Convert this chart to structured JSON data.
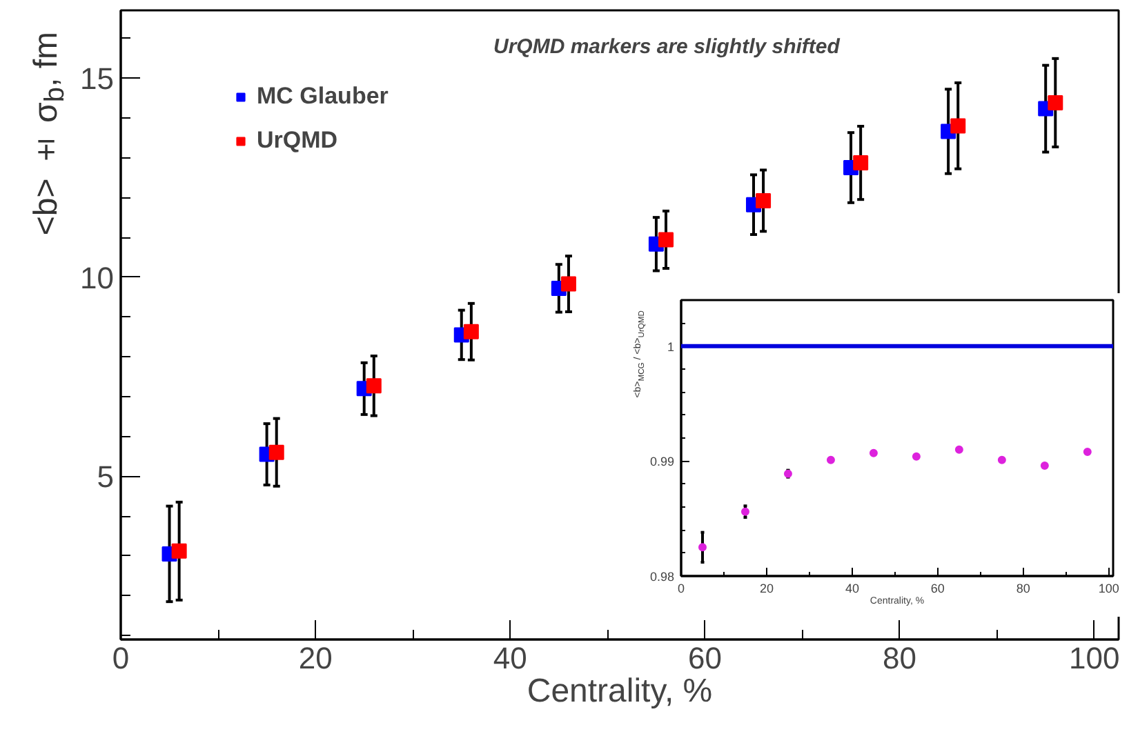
{
  "chart_data": [
    {
      "type": "scatter",
      "xlabel": "Centrality, %",
      "ylabel": "<b> ± σ$_{b}$, fm",
      "xlim": [
        0,
        102.5
      ],
      "ylim": [
        0.9,
        16.7
      ],
      "xticks": [
        0,
        20,
        40,
        60,
        80,
        100
      ],
      "yticks": [
        5,
        10,
        15
      ],
      "marker": "square",
      "legend": "top left",
      "grid": false,
      "annotations": [
        "UrQMD markers are slightly shifted"
      ],
      "series": [
        {
          "name": "MC Glauber",
          "color": "#0000ff",
          "x": [
            5,
            15,
            25,
            35,
            45,
            55,
            65,
            75,
            85,
            95
          ],
          "values": [
            3.05,
            5.55,
            7.2,
            8.55,
            9.72,
            10.83,
            11.82,
            12.75,
            13.66,
            14.23
          ],
          "errors": [
            1.2,
            0.77,
            0.65,
            0.62,
            0.6,
            0.67,
            0.75,
            0.88,
            1.06,
            1.09
          ]
        },
        {
          "name": "UrQMD",
          "color": "#ff0000",
          "x": [
            6,
            16,
            26,
            36,
            46,
            56,
            66,
            76,
            86,
            96
          ],
          "values": [
            3.12,
            5.6,
            7.27,
            8.63,
            9.83,
            10.94,
            11.92,
            12.87,
            13.8,
            14.38
          ],
          "errors": [
            1.23,
            0.85,
            0.75,
            0.71,
            0.7,
            0.72,
            0.77,
            0.92,
            1.08,
            1.11
          ]
        }
      ]
    },
    {
      "type": "scatter",
      "xlabel": "Centrality, %",
      "ylabel": "<b>$_{MCG}$ / <b>$_{UrQMD}$",
      "xlim": [
        0,
        101
      ],
      "ylim": [
        0.98,
        1.004
      ],
      "xticks": [
        0,
        20,
        40,
        60,
        80,
        100
      ],
      "yticks": [
        0.98,
        0.99,
        1
      ],
      "marker": "circle",
      "grid": false,
      "ref_lines": [
        {
          "axis": "y",
          "value": 1,
          "color": "#0000dd"
        }
      ],
      "series": [
        {
          "color": "#dd22dd",
          "x": [
            5,
            15,
            25,
            35,
            45,
            55,
            65,
            75,
            85,
            95
          ],
          "values": [
            0.9825,
            0.9856,
            0.9889,
            0.9901,
            0.9907,
            0.9904,
            0.991,
            0.9901,
            0.9896,
            0.9908
          ],
          "errors": [
            0.0013,
            0.0005,
            0.0003,
            null,
            null,
            null,
            null,
            null,
            null,
            null
          ]
        }
      ]
    }
  ]
}
